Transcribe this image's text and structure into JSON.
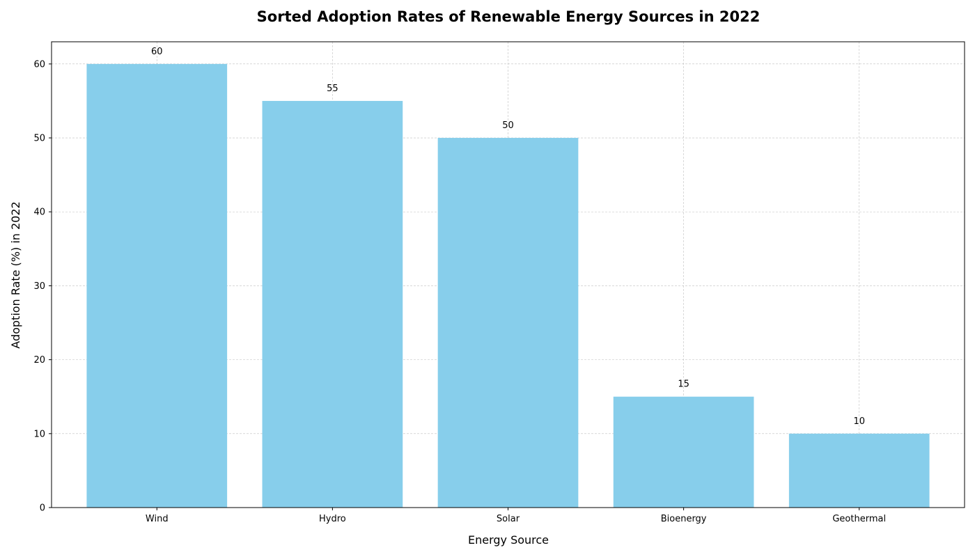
{
  "chart_data": {
    "type": "bar",
    "title": "Sorted Adoption Rates of Renewable Energy Sources in 2022",
    "xlabel": "Energy Source",
    "ylabel": "Adoption Rate (%) in 2022",
    "categories": [
      "Wind",
      "Hydro",
      "Solar",
      "Bioenergy",
      "Geothermal"
    ],
    "values": [
      60,
      55,
      50,
      15,
      10
    ],
    "ylim": [
      0,
      63
    ],
    "yticks": [
      0,
      10,
      20,
      30,
      40,
      50,
      60
    ],
    "grid": true,
    "bar_color": "#87CEEB",
    "show_data_labels": true
  }
}
